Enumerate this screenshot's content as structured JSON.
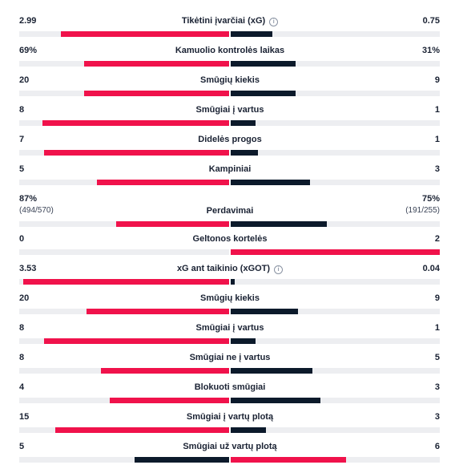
{
  "colors": {
    "home_winner": "#f0124b",
    "away_winner": "#f0124b",
    "loser": "#0c1a2b",
    "track": "#edeef1"
  },
  "stats": [
    {
      "label": "Tikėtini įvarčiai (xG)",
      "info": true,
      "home": "2.99",
      "away": "0.75",
      "home_pct": 0.8,
      "away_pct": 0.2
    },
    {
      "label": "Kamuolio kontrolės laikas",
      "home": "69%",
      "away": "31%",
      "home_pct": 0.69,
      "away_pct": 0.31
    },
    {
      "label": "Smūgių kiekis",
      "home": "20",
      "away": "9",
      "home_pct": 0.69,
      "away_pct": 0.31
    },
    {
      "label": "Smūgiai į vartus",
      "home": "8",
      "away": "1",
      "home_pct": 0.89,
      "away_pct": 0.12
    },
    {
      "label": "Didelės progos",
      "home": "7",
      "away": "1",
      "home_pct": 0.88,
      "away_pct": 0.13
    },
    {
      "label": "Kampiniai",
      "home": "5",
      "away": "3",
      "home_pct": 0.63,
      "away_pct": 0.38
    },
    {
      "label": "Perdavimai",
      "home": "87%",
      "away": "75%",
      "home_sub": "(494/570)",
      "away_sub": "(191/255)",
      "home_pct": 0.54,
      "away_pct": 0.46
    },
    {
      "label": "Geltonos kortelės",
      "home": "0",
      "away": "2",
      "home_pct": 0.0,
      "away_pct": 1.0
    },
    {
      "label": "xG ant taikinio (xGOT)",
      "info": true,
      "home": "3.53",
      "away": "0.04",
      "home_pct": 0.98,
      "away_pct": 0.02
    },
    {
      "label": "Smūgių kiekis",
      "home": "20",
      "away": "9",
      "home_pct": 0.68,
      "away_pct": 0.32
    },
    {
      "label": "Smūgiai į vartus",
      "home": "8",
      "away": "1",
      "home_pct": 0.88,
      "away_pct": 0.12
    },
    {
      "label": "Smūgiai ne į vartus",
      "home": "8",
      "away": "5",
      "home_pct": 0.61,
      "away_pct": 0.39
    },
    {
      "label": "Blokuoti smūgiai",
      "home": "4",
      "away": "3",
      "home_pct": 0.57,
      "away_pct": 0.43
    },
    {
      "label": "Smūgiai į vartų plotą",
      "home": "15",
      "away": "3",
      "home_pct": 0.83,
      "away_pct": 0.17
    },
    {
      "label": "Smūgiai už vartų plotą",
      "home": "5",
      "away": "6",
      "home_pct": 0.45,
      "away_pct": 0.55
    }
  ]
}
